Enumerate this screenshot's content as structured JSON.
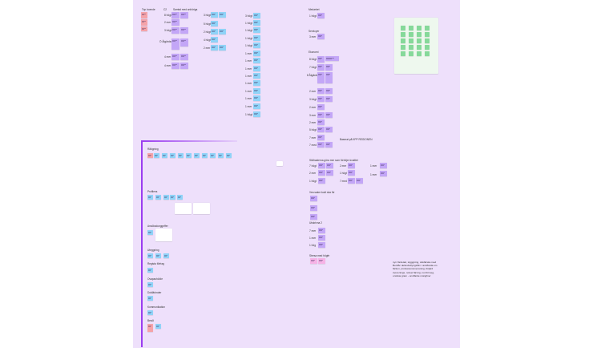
{
  "board": {
    "background": "#eee0fb",
    "colors": {
      "pink": "#f5a3a9",
      "violet": "#c3a6f7",
      "blue": "#8fd3f8",
      "lightpink": "#f6b3e6",
      "green": "#86d99a",
      "bracket": "#9b3df0"
    }
  },
  "left_top": {
    "col_a_label": "Top boende",
    "col_b_label": "C2",
    "col_b_sub": "Samtal med anhöriga",
    "rows_b": [
      "8 högt",
      "2 mer",
      "3 högt",
      "Ö Åtgärdsned",
      "4 mer",
      "4 mer"
    ]
  },
  "mid_top": {
    "rows": [
      "3 högt",
      "5 högt",
      "2 högt",
      "4 högt",
      "2 mer",
      "3 mer"
    ],
    "column_rows": [
      "3 högt",
      "1 högt",
      "1 högt",
      "1 högt",
      "1 högt",
      "1 mer",
      "1 mer",
      "1 mer",
      "1 mer",
      "1 mer",
      "1 mer",
      "1 mer",
      "1 mer",
      "1 högt",
      "1 högt",
      "1 mer",
      "1 mer"
    ]
  },
  "right_top": {
    "title_1": "Medarbet",
    "row_1": "1 högt",
    "title_2": "Servicyer",
    "row_2": "3 mer",
    "title_3": "Ekonomi",
    "rows_3": [
      "8 högt",
      "7 högt",
      "8 Åtgärdsned",
      "2 mer",
      "3 högt",
      "2 mer",
      "3 mer",
      "2 mer",
      "5 högt",
      "7 mer",
      "7 med",
      "1 hög"
    ],
    "side_note": "Baserat på KPP REGIONEN"
  },
  "right_mid": {
    "title": "Skillnaderna göra mer som förhöjer kvalitet",
    "rows_left": [
      "7 högt",
      "2 mer",
      "1 högt"
    ],
    "rows_mid": [
      "2 mer",
      "1 högt",
      "7 med"
    ],
    "rows_right": [
      "1 mer",
      "1 mer"
    ],
    "title_2": "Vea sakre kodt ska för",
    "title_3": "Utskrivna 2",
    "rows_3": [
      "7 mer",
      "1 mer",
      "1 hög"
    ],
    "title_4": "Stresa med högfe",
    "paragraph": "nyn fördelad, stgggning, dokfärska med\nBemBc dellesbullyngsfilm i ansffarda om\nfärfem, professionsmensning, förjärd\növerenings, notsei färmig, not förmeg,\nonsfeta gram - onsffarde mängfner"
  },
  "left_bottom": {
    "section_1": "Rådgning",
    "section_2": "Profilens",
    "section_3": "Ansöksdunggnffer",
    "section_4": "Uteggning",
    "section_5": "Regista förfrag",
    "section_6": "Ovapachö/de",
    "section_7": "Dokfärknder",
    "section_8": "Kommunikation",
    "section_9": "Besöl"
  }
}
